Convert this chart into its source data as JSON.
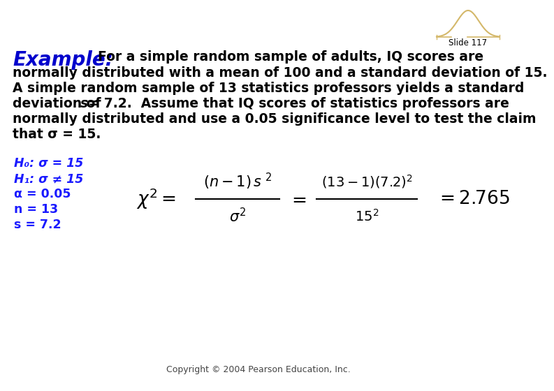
{
  "bg_color": "#ffffff",
  "slide_num": "Slide 117",
  "example_label_color": "#0000cc",
  "body_text_color": "#000000",
  "hypothesis_color": "#1a1aff",
  "formula_color": "#000000",
  "copyright": "Copyright © 2004 Pearson Education, Inc.",
  "curve_color": "#d4b86a",
  "body_lines": [
    "For a simple random sample of adults, IQ scores are",
    "normally distributed with a mean of 100 and a standard deviation of 15.",
    "A simple random sample of 13 statistics professors yields a standard",
    "deviation of s = 7.2.  Assume that IQ scores of statistics professors are",
    "normally distributed and use a 0.05 significance level to test the claim",
    "that σ = 15."
  ],
  "hypothesis_lines": [
    "H₀: σ = 15",
    "H₁: σ ≠ 15",
    "α = 0.05",
    "n = 13",
    "s = 7.2"
  ]
}
